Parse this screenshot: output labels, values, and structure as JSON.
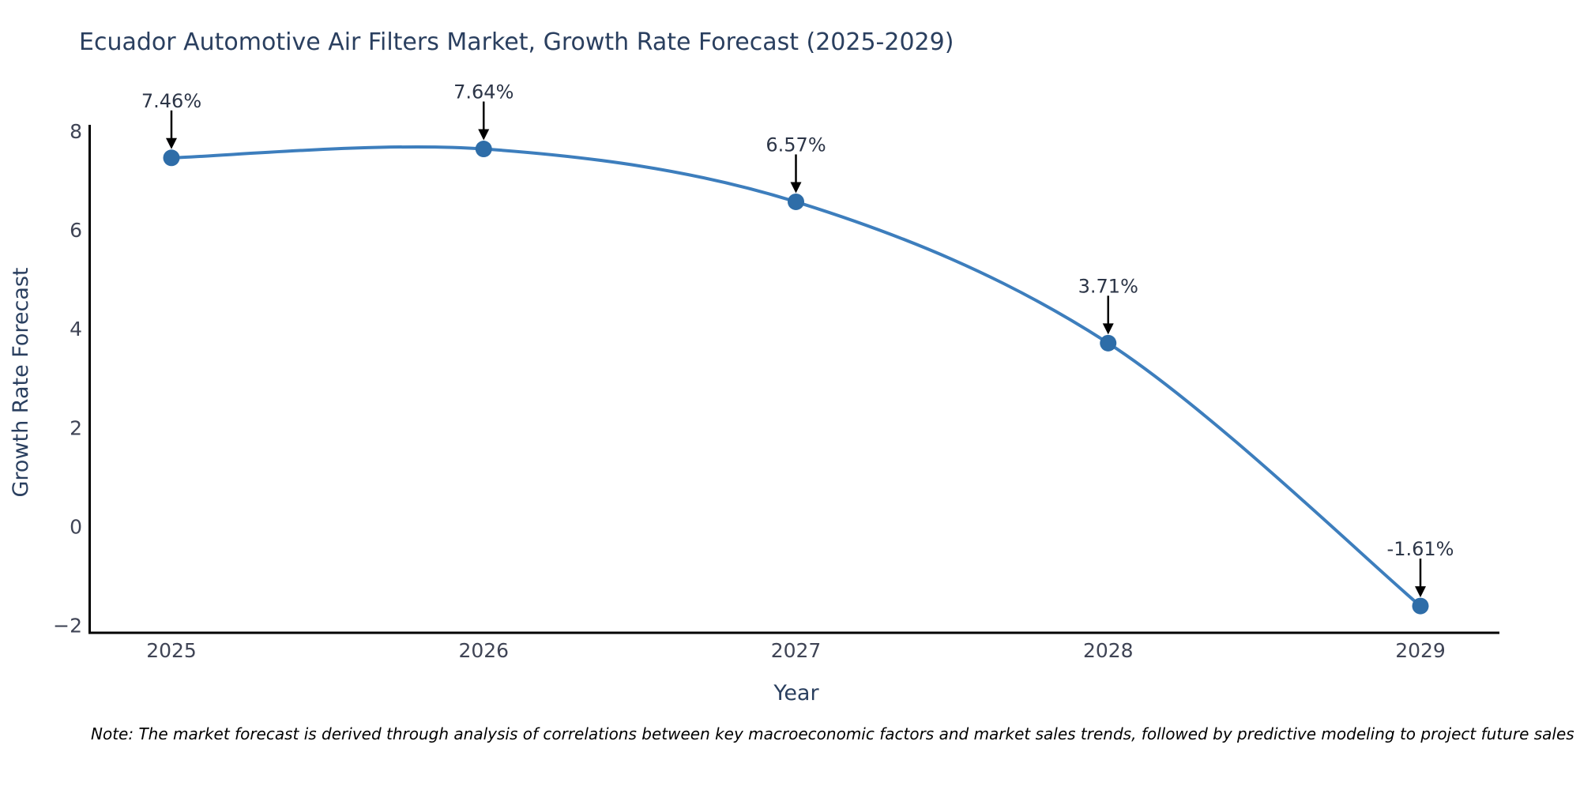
{
  "figure": {
    "note": "Note: The market forecast is derived through analysis of correlations between key macroeconomic factors and market sales trends, followed by predictive modeling to project future sales"
  },
  "chart_data": {
    "type": "line",
    "title": "Ecuador Automotive Air Filters Market, Growth Rate Forecast (2025-2029)",
    "x": [
      2025,
      2026,
      2027,
      2028,
      2029
    ],
    "series": [
      {
        "name": "Growth Rate Forecast",
        "values": [
          7.46,
          7.64,
          6.57,
          3.71,
          -1.61
        ]
      }
    ],
    "point_labels": [
      "7.46%",
      "7.64%",
      "6.57%",
      "3.71%",
      "-1.61%"
    ],
    "xlabel": "Year",
    "ylabel": "Growth Rate Forecast",
    "yticks": [
      8,
      6,
      4,
      2,
      0,
      -2
    ],
    "ylim": [
      -2.15,
      8.12
    ],
    "grid": false,
    "line_shape": "spline",
    "markers": true,
    "legend_position": "none"
  },
  "colors": {
    "line": "#3d7ebd",
    "marker": "#2e6da8",
    "axis": "#000000",
    "title_text": "#2a3f5f",
    "tick_text": "#3f4455",
    "annotation_text": "#2c3547",
    "arrow": "#000000",
    "background": "#ffffff"
  }
}
